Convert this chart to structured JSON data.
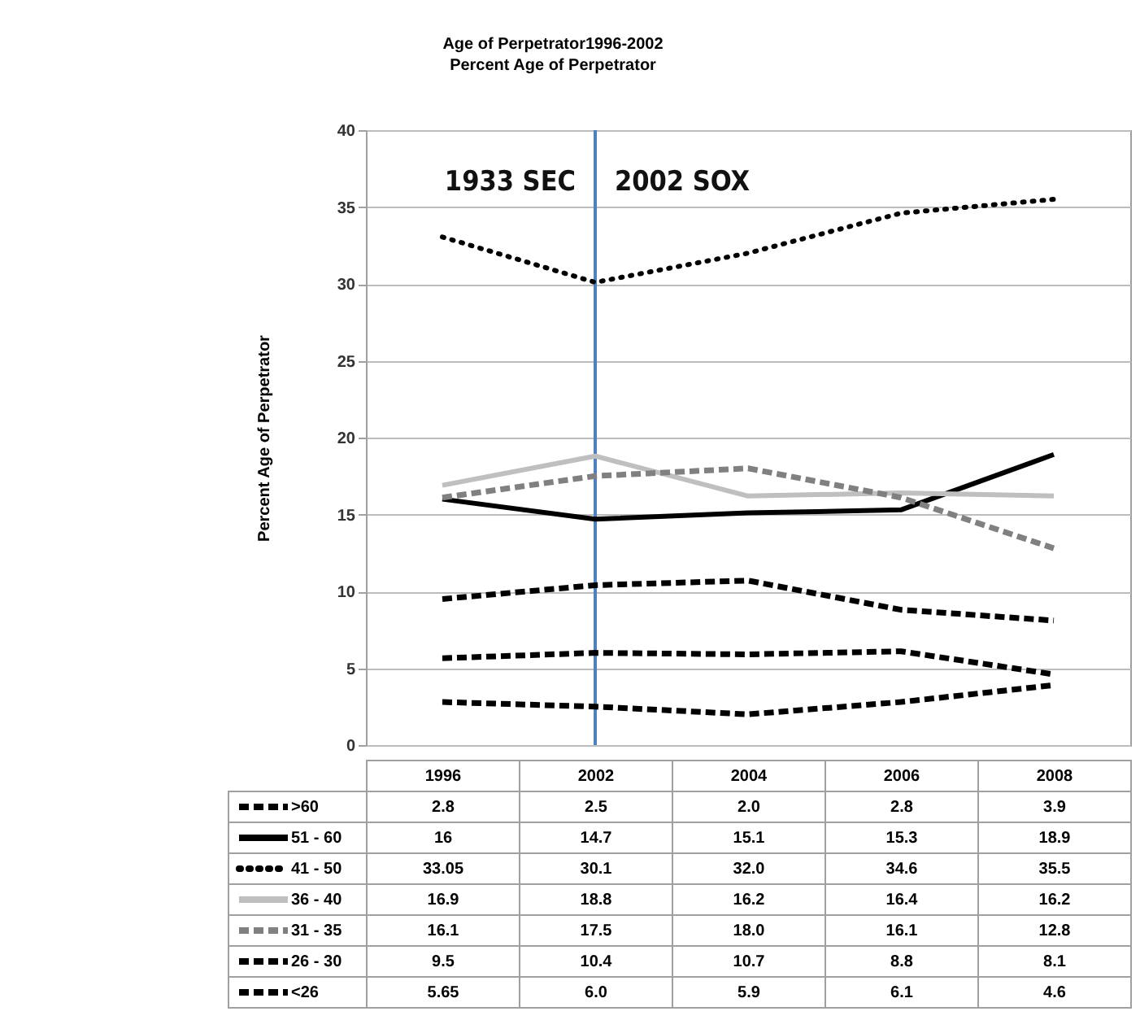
{
  "chart_data": {
    "type": "line",
    "title": "Age of Perpetrator1996-2002",
    "subtitle": "Percent Age of Perpetrator",
    "ylabel": "Percent Age of Perpetrator",
    "categories": [
      "1996",
      "2002",
      "2004",
      "2006",
      "2008"
    ],
    "ylim": [
      0,
      40
    ],
    "yticks": [
      0,
      5,
      10,
      15,
      20,
      25,
      30,
      35,
      40
    ],
    "grid": "y",
    "legend": "bottom",
    "tick_labels": "y",
    "ref_lines": [
      {
        "axis": "x",
        "value": "2002",
        "color": "#4f81bd"
      }
    ],
    "annotations": [
      "1933 SEC",
      "2002 SOX"
    ],
    "series": [
      {
        "name": ">60",
        "color": "#000000",
        "line_style": "dashed",
        "values": [
          2.8,
          2.5,
          2.0,
          2.8,
          3.9
        ],
        "value_labels": [
          "2.8",
          "2.5",
          "2.0",
          "2.8",
          "3.9"
        ]
      },
      {
        "name": "51 - 60",
        "color": "#000000",
        "line_style": "solid",
        "values": [
          16,
          14.7,
          15.1,
          15.3,
          18.9
        ],
        "value_labels": [
          "16",
          "14.7",
          "15.1",
          "15.3",
          "18.9"
        ]
      },
      {
        "name": "41 - 50",
        "color": "#000000",
        "line_style": "dotted",
        "values": [
          33.05,
          30.1,
          32.0,
          34.6,
          35.5
        ],
        "value_labels": [
          "33.05",
          "30.1",
          "32.0",
          "34.6",
          "35.5"
        ]
      },
      {
        "name": "36 - 40",
        "color": "#bfbfbf",
        "line_style": "solid",
        "values": [
          16.9,
          18.8,
          16.2,
          16.4,
          16.2
        ],
        "value_labels": [
          "16.9",
          "18.8",
          "16.2",
          "16.4",
          "16.2"
        ]
      },
      {
        "name": "31 - 35",
        "color": "#808080",
        "line_style": "dashed",
        "values": [
          16.1,
          17.5,
          18.0,
          16.1,
          12.8
        ],
        "value_labels": [
          "16.1",
          "17.5",
          "18.0",
          "16.1",
          "12.8"
        ]
      },
      {
        "name": "26 - 30",
        "color": "#000000",
        "line_style": "dashed",
        "values": [
          9.5,
          10.4,
          10.7,
          8.8,
          8.1
        ],
        "value_labels": [
          "9.5",
          "10.4",
          "10.7",
          "8.8",
          "8.1"
        ]
      },
      {
        "name": "<26",
        "color": "#000000",
        "line_style": "dashed",
        "values": [
          5.65,
          6.0,
          5.9,
          6.1,
          4.6
        ],
        "value_labels": [
          "5.65",
          "6.0",
          "5.9",
          "6.1",
          "4.6"
        ]
      }
    ]
  }
}
